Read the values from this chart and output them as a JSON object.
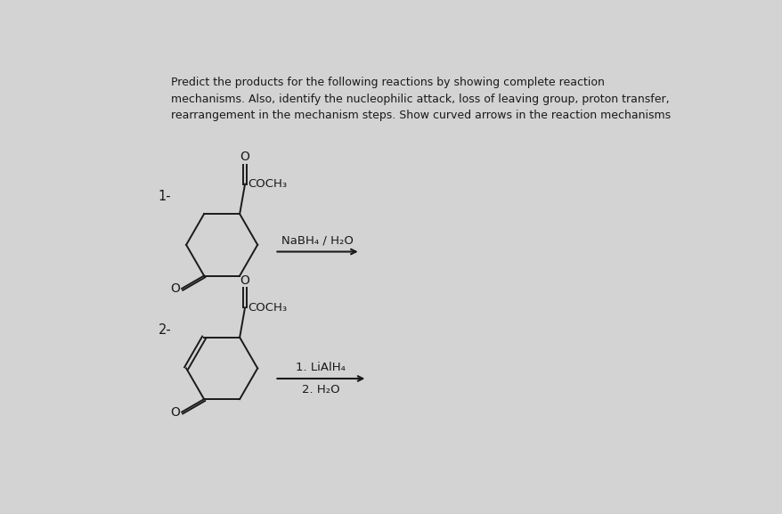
{
  "bg_color": "#d3d3d3",
  "text_color": "#1a1a1a",
  "header_text": "Predict the products for the following reactions by showing complete reaction\nmechanisms. Also, identify the nucleophilic attack, loss of leaving group, proton transfer,\nrearrangement in the mechanism steps. Show curved arrows in the reaction mechanisms",
  "header_fontsize": 9.0,
  "reagent1": "NaBH₄ / H₂O",
  "reagent2a": "1. LiAlH₄",
  "reagent2b": "2. H₂O"
}
